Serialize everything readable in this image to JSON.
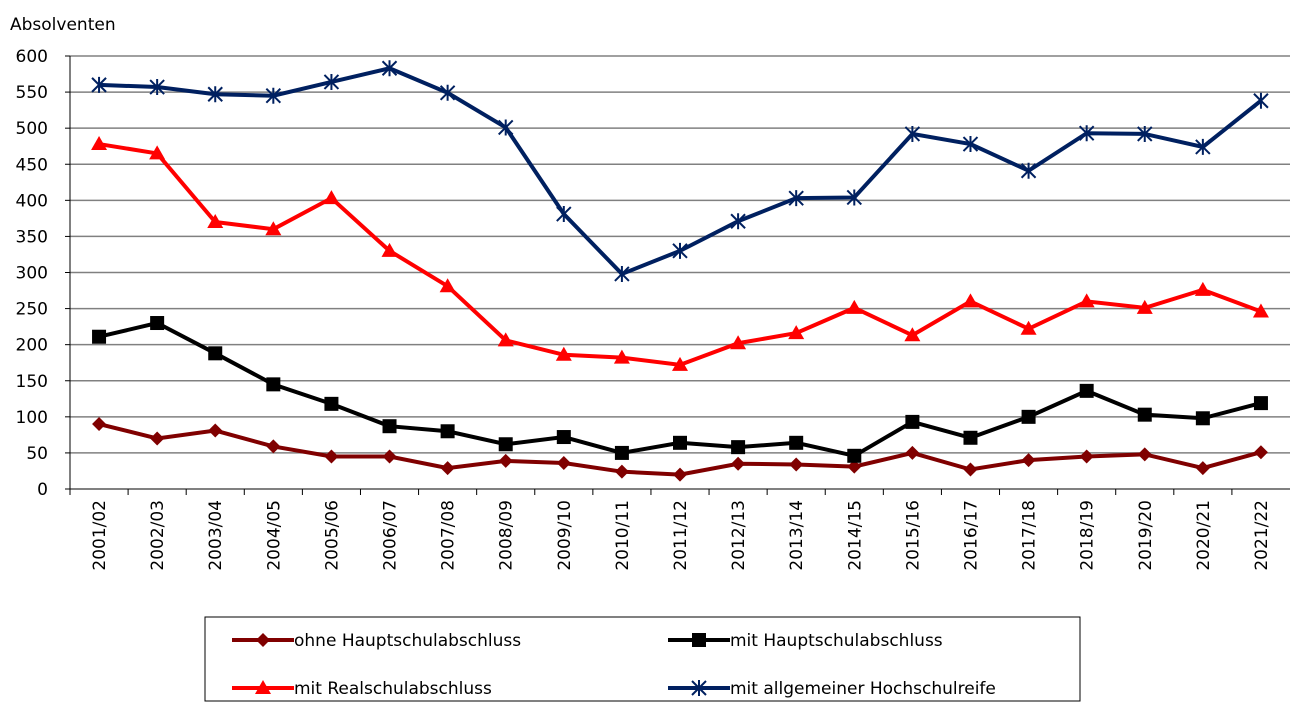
{
  "chart_data": {
    "type": "line",
    "y_label": "Absolventen",
    "categories": [
      "2001/02",
      "2002/03",
      "2003/04",
      "2004/05",
      "2005/06",
      "2006/07",
      "2007/08",
      "2008/09",
      "2009/10",
      "2010/11",
      "2011/12",
      "2012/13",
      "2013/14",
      "2014/15",
      "2015/16",
      "2016/17",
      "2017/18",
      "2018/19",
      "2019/20",
      "2020/21",
      "2021/22"
    ],
    "series": [
      {
        "name": "ohne Hauptschulabschluss",
        "color": "#800000",
        "marker": "diamond",
        "values": [
          90,
          70,
          81,
          59,
          45,
          45,
          29,
          39,
          36,
          24,
          20,
          35,
          34,
          31,
          50,
          27,
          40,
          45,
          48,
          29,
          51
        ]
      },
      {
        "name": "mit Hauptschulabschluss",
        "color": "#000000",
        "marker": "square",
        "values": [
          211,
          230,
          188,
          145,
          118,
          87,
          80,
          62,
          72,
          50,
          64,
          58,
          64,
          46,
          93,
          71,
          100,
          136,
          103,
          98,
          119
        ]
      },
      {
        "name": "mit Realschulabschluss",
        "color": "#ff0000",
        "marker": "triangle",
        "values": [
          478,
          465,
          370,
          360,
          403,
          330,
          281,
          206,
          186,
          182,
          172,
          202,
          216,
          251,
          213,
          260,
          222,
          260,
          251,
          276,
          246
        ]
      },
      {
        "name": "mit allgemeiner Hochschulreife",
        "color": "#002060",
        "marker": "asterisk",
        "values": [
          560,
          557,
          547,
          545,
          564,
          583,
          549,
          501,
          381,
          298,
          330,
          371,
          403,
          404,
          492,
          478,
          441,
          493,
          492,
          474,
          538
        ]
      }
    ],
    "ylim": [
      0,
      600
    ],
    "yticks": [
      0,
      50,
      100,
      150,
      200,
      250,
      300,
      350,
      400,
      450,
      500,
      550,
      600
    ],
    "grid": true
  }
}
